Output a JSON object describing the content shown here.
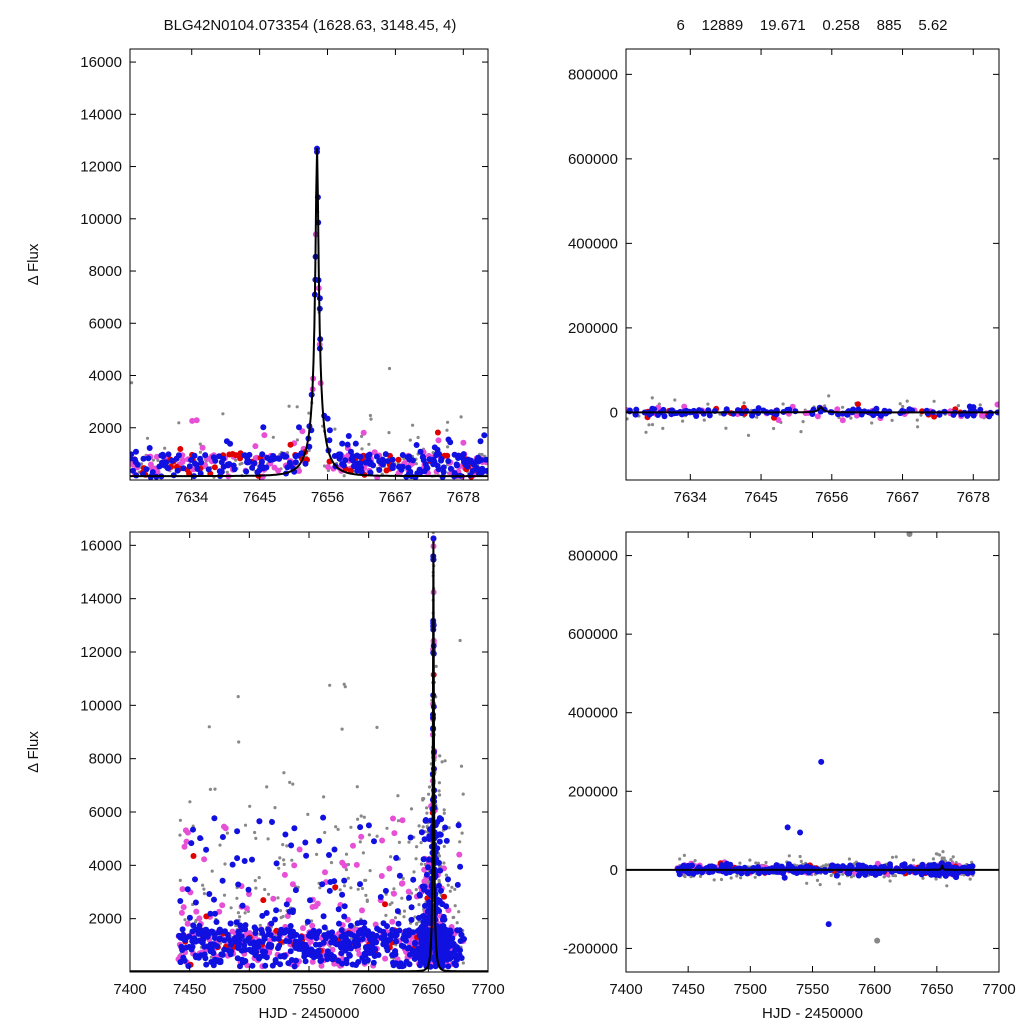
{
  "header": {
    "left_title": "BLG42N0104.073354 (1628.63, 3148.45,    4)",
    "right_title": "6    12889    19.671    0.258    885    5.62"
  },
  "chart_data": [
    {
      "id": "top-left",
      "type": "scatter",
      "title": "",
      "xlabel": "",
      "ylabel": "Δ Flux",
      "xlim": [
        7624,
        7682
      ],
      "ylim": [
        0,
        16500
      ],
      "xticks": [
        7634,
        7645,
        7656,
        7667,
        7678
      ],
      "yticks": [
        2000,
        4000,
        6000,
        8000,
        10000,
        12000,
        14000,
        16000
      ],
      "grid": false,
      "model": {
        "t0": 7654.3,
        "tE": 3.1,
        "base": 150,
        "peak": 12700,
        "line_color": "#000000"
      },
      "series": [
        {
          "color": "#888888",
          "size": 1.6,
          "count": 160,
          "scatter": 1400
        },
        {
          "color": "#e64fd6",
          "size": 3,
          "count": 140,
          "scatter": 700
        },
        {
          "color": "#e00000",
          "size": 3,
          "count": 60,
          "scatter": 600
        },
        {
          "color": "#1010e0",
          "size": 3,
          "count": 260,
          "scatter": 650
        }
      ]
    },
    {
      "id": "top-right",
      "type": "scatter",
      "title": "",
      "xlabel": "",
      "ylabel": "",
      "xlim": [
        7624,
        7682
      ],
      "ylim": [
        -160000,
        860000
      ],
      "xticks": [
        7634,
        7645,
        7656,
        7667,
        7678
      ],
      "yticks": [
        0,
        200000,
        400000,
        600000,
        800000
      ],
      "grid": false,
      "model": {
        "t0": 7654.3,
        "tE": 3.1,
        "base": 0,
        "peak": 12700,
        "line_color": "#000000"
      },
      "series": [
        {
          "color": "#888888",
          "size": 1.6,
          "count": 60,
          "scatter": 30000
        },
        {
          "color": "#e64fd6",
          "size": 3,
          "count": 40,
          "scatter": 8000
        },
        {
          "color": "#e00000",
          "size": 3,
          "count": 20,
          "scatter": 6000
        },
        {
          "color": "#1010e0",
          "size": 3,
          "count": 120,
          "scatter": 5000
        }
      ]
    },
    {
      "id": "bottom-left",
      "type": "scatter",
      "title": "",
      "xlabel": "HJD - 2450000",
      "ylabel": "Δ Flux",
      "xlim": [
        7400,
        7700
      ],
      "ylim": [
        0,
        16500
      ],
      "xticks": [
        7400,
        7450,
        7500,
        7550,
        7600,
        7650,
        7700
      ],
      "yticks": [
        2000,
        4000,
        6000,
        8000,
        10000,
        12000,
        14000,
        16000
      ],
      "grid": false,
      "model": {
        "t0": 7654.3,
        "tE": 3.1,
        "base": 30,
        "peak": 16500,
        "line_color": "#000000"
      },
      "series": [
        {
          "color": "#888888",
          "size": 1.6,
          "count": 900,
          "scatter": 3800
        },
        {
          "color": "#e64fd6",
          "size": 3,
          "count": 500,
          "scatter": 1400
        },
        {
          "color": "#e00000",
          "size": 3,
          "count": 60,
          "scatter": 800
        },
        {
          "color": "#1010e0",
          "size": 3,
          "count": 900,
          "scatter": 1200
        }
      ]
    },
    {
      "id": "bottom-right",
      "type": "scatter",
      "title": "",
      "xlabel": "HJD - 2450000",
      "ylabel": "",
      "xlim": [
        7400,
        7700
      ],
      "ylim": [
        -260000,
        860000
      ],
      "xticks": [
        7400,
        7450,
        7500,
        7550,
        7600,
        7650,
        7700
      ],
      "yticks": [
        -200000,
        0,
        200000,
        400000,
        600000,
        800000
      ],
      "grid": false,
      "model": {
        "t0": 7654.3,
        "tE": 3.1,
        "base": 0,
        "peak": 12700,
        "line_color": "#000000"
      },
      "series": [
        {
          "color": "#888888",
          "size": 1.6,
          "count": 500,
          "scatter": 12000
        },
        {
          "color": "#e64fd6",
          "size": 3,
          "count": 150,
          "scatter": 6000
        },
        {
          "color": "#e00000",
          "size": 3,
          "count": 30,
          "scatter": 5000
        },
        {
          "color": "#1010e0",
          "size": 3,
          "count": 450,
          "scatter": 6000
        }
      ],
      "outliers": [
        {
          "x": 7557,
          "y": 275000,
          "color": "#1010e0"
        },
        {
          "x": 7530,
          "y": 108000,
          "color": "#1010e0"
        },
        {
          "x": 7540,
          "y": 95000,
          "color": "#1010e0"
        },
        {
          "x": 7563,
          "y": -138000,
          "color": "#1010e0"
        },
        {
          "x": 7602,
          "y": -180000,
          "color": "#888888"
        },
        {
          "x": 7628,
          "y": 855000,
          "color": "#888888"
        }
      ]
    }
  ]
}
